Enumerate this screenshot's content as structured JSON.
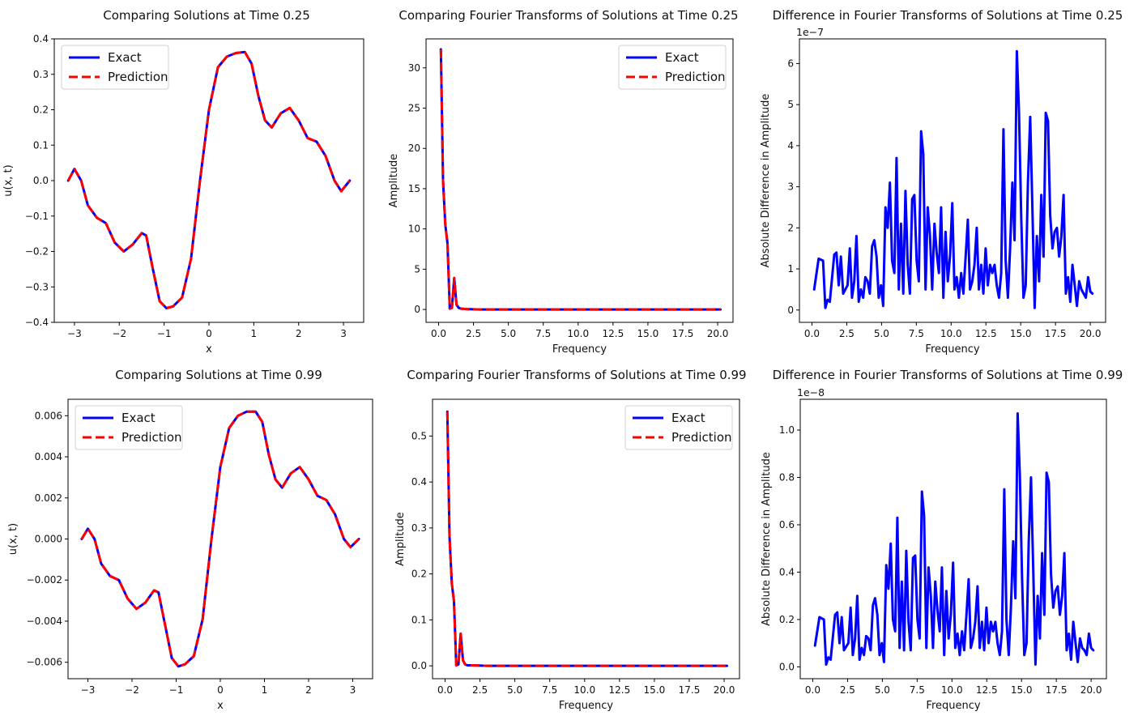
{
  "chart_data": [
    {
      "id": "p1",
      "type": "line",
      "title": "Comparing Solutions at Time 0.25",
      "xlabel": "x",
      "ylabel": "u(x, t)",
      "xlim": [
        -3.45,
        3.45
      ],
      "ylim": [
        -0.4,
        0.4
      ],
      "xticks": [
        -3,
        -2,
        -1,
        0,
        1,
        2,
        3
      ],
      "xtick_labels": [
        "−3",
        "−2",
        "−1",
        "0",
        "1",
        "2",
        "3"
      ],
      "yticks": [
        -0.4,
        -0.3,
        -0.2,
        -0.1,
        0.0,
        0.1,
        0.2,
        0.3,
        0.4
      ],
      "ytick_labels": [
        "−0.4",
        "−0.3",
        "−0.2",
        "−0.1",
        "0.0",
        "0.1",
        "0.2",
        "0.3",
        "0.4"
      ],
      "y_offset_label": "",
      "legend": "upper-left",
      "series": [
        {
          "name": "Exact",
          "color": "#0000ff",
          "style": "solid",
          "x": [
            -3.14,
            -3.0,
            -2.85,
            -2.7,
            -2.5,
            -2.3,
            -2.1,
            -1.9,
            -1.7,
            -1.5,
            -1.4,
            -1.25,
            -1.1,
            -0.95,
            -0.8,
            -0.6,
            -0.4,
            -0.2,
            0.0,
            0.2,
            0.4,
            0.6,
            0.8,
            0.95,
            1.1,
            1.25,
            1.4,
            1.6,
            1.8,
            2.0,
            2.2,
            2.4,
            2.6,
            2.8,
            2.95,
            3.14
          ],
          "y": [
            0.0,
            0.033,
            0.0,
            -0.07,
            -0.105,
            -0.12,
            -0.175,
            -0.2,
            -0.18,
            -0.148,
            -0.155,
            -0.25,
            -0.34,
            -0.36,
            -0.355,
            -0.33,
            -0.22,
            0.0,
            0.2,
            0.32,
            0.35,
            0.36,
            0.363,
            0.33,
            0.24,
            0.17,
            0.15,
            0.19,
            0.205,
            0.17,
            0.12,
            0.11,
            0.07,
            0.0,
            -0.03,
            0.0
          ]
        },
        {
          "name": "Prediction",
          "color": "#ff0000",
          "style": "dashed",
          "same_as": 0
        }
      ]
    },
    {
      "id": "p2",
      "type": "line",
      "title": "Comparing Fourier Transforms of Solutions at Time 0.25",
      "xlabel": "Frequency",
      "ylabel": "Amplitude",
      "xlim": [
        -0.9,
        21.1
      ],
      "ylim": [
        -1.6,
        33.6
      ],
      "xticks": [
        0,
        2.5,
        5,
        7.5,
        10,
        12.5,
        15,
        17.5,
        20
      ],
      "xtick_labels": [
        "0.0",
        "2.5",
        "5.0",
        "7.5",
        "10.0",
        "12.5",
        "15.0",
        "17.5",
        "20.0"
      ],
      "yticks": [
        0,
        5,
        10,
        15,
        20,
        25,
        30
      ],
      "ytick_labels": [
        "0",
        "5",
        "10",
        "15",
        "20",
        "25",
        "30"
      ],
      "y_offset_label": "",
      "legend": "upper-right",
      "series": [
        {
          "name": "Exact",
          "color": "#0000ff",
          "style": "solid",
          "x": [
            0.16,
            0.32,
            0.48,
            0.64,
            0.8,
            0.96,
            1.12,
            1.28,
            1.44,
            1.6,
            2.0,
            3.0,
            20.2
          ],
          "y": [
            32.3,
            16.0,
            10.5,
            8.2,
            0.1,
            0.2,
            3.9,
            0.6,
            0.2,
            0.1,
            0.05,
            0.0,
            0.0
          ]
        },
        {
          "name": "Prediction",
          "color": "#ff0000",
          "style": "dashed",
          "same_as": 0
        }
      ]
    },
    {
      "id": "p3",
      "type": "line",
      "title": "Difference in Fourier Transforms of Solutions at Time 0.25",
      "xlabel": "Frequency",
      "ylabel": "Absolute Difference in Amplitude",
      "xlim": [
        -0.9,
        21.1
      ],
      "ylim": [
        -0.3,
        6.6
      ],
      "xticks": [
        0,
        2.5,
        5,
        7.5,
        10,
        12.5,
        15,
        17.5,
        20
      ],
      "xtick_labels": [
        "0.0",
        "2.5",
        "5.0",
        "7.5",
        "10.0",
        "12.5",
        "15.0",
        "17.5",
        "20.0"
      ],
      "yticks": [
        0,
        1,
        2,
        3,
        4,
        5,
        6
      ],
      "ytick_labels": [
        "0",
        "1",
        "2",
        "3",
        "4",
        "5",
        "6"
      ],
      "y_offset_label": "1e−7",
      "legend": "",
      "series": [
        {
          "name": "",
          "color": "#0000ff",
          "style": "solid",
          "x": [
            0.16,
            0.48,
            0.8,
            0.96,
            1.12,
            1.28,
            1.6,
            1.76,
            1.92,
            2.08,
            2.24,
            2.56,
            2.72,
            2.88,
            3.04,
            3.2,
            3.36,
            3.52,
            3.68,
            3.84,
            4.0,
            4.16,
            4.32,
            4.48,
            4.64,
            4.8,
            4.96,
            5.12,
            5.28,
            5.44,
            5.6,
            5.76,
            5.92,
            6.08,
            6.24,
            6.4,
            6.56,
            6.72,
            6.88,
            7.04,
            7.2,
            7.36,
            7.52,
            7.68,
            7.84,
            8.0,
            8.16,
            8.32,
            8.48,
            8.64,
            8.8,
            8.96,
            9.12,
            9.28,
            9.44,
            9.6,
            9.76,
            9.92,
            10.08,
            10.24,
            10.4,
            10.56,
            10.72,
            10.88,
            11.04,
            11.2,
            11.36,
            11.52,
            11.68,
            11.84,
            12.0,
            12.16,
            12.32,
            12.48,
            12.64,
            12.8,
            12.96,
            13.12,
            13.28,
            13.44,
            13.6,
            13.76,
            13.92,
            14.08,
            14.24,
            14.4,
            14.56,
            14.72,
            14.88,
            15.04,
            15.2,
            15.36,
            15.52,
            15.68,
            15.84,
            16.0,
            16.16,
            16.32,
            16.48,
            16.64,
            16.8,
            16.96,
            17.12,
            17.28,
            17.44,
            17.6,
            17.76,
            17.92,
            18.08,
            18.24,
            18.4,
            18.56,
            18.72,
            18.88,
            19.04,
            19.2,
            19.36,
            19.52,
            19.68,
            19.84,
            20.0,
            20.16
          ],
          "y": [
            0.5,
            1.25,
            1.2,
            0.05,
            0.25,
            0.2,
            1.35,
            1.4,
            0.6,
            1.3,
            0.4,
            0.6,
            1.5,
            0.3,
            0.7,
            1.8,
            0.2,
            0.5,
            0.3,
            0.8,
            0.7,
            0.4,
            1.55,
            1.7,
            1.3,
            0.3,
            0.6,
            0.1,
            2.5,
            2.0,
            3.1,
            1.2,
            0.9,
            3.7,
            0.5,
            2.1,
            0.4,
            2.9,
            1.1,
            0.4,
            2.7,
            2.8,
            1.2,
            0.7,
            4.35,
            3.8,
            0.5,
            2.5,
            1.8,
            0.5,
            2.1,
            1.4,
            0.9,
            2.5,
            0.3,
            1.9,
            0.7,
            1.3,
            2.6,
            0.5,
            0.8,
            0.3,
            0.9,
            0.4,
            1.3,
            2.2,
            0.5,
            0.7,
            1.1,
            2.0,
            0.5,
            1.1,
            0.4,
            1.5,
            0.6,
            1.1,
            0.9,
            1.1,
            0.6,
            0.3,
            0.9,
            4.4,
            1.2,
            0.3,
            1.5,
            3.1,
            1.7,
            6.3,
            4.8,
            2.2,
            0.3,
            0.6,
            3.1,
            4.7,
            2.5,
            0.05,
            1.8,
            0.7,
            2.8,
            1.3,
            4.8,
            4.6,
            2.3,
            1.5,
            1.9,
            2.0,
            1.3,
            1.8,
            2.8,
            0.4,
            0.8,
            0.2,
            1.1,
            0.6,
            0.1,
            0.7,
            0.5,
            0.4,
            0.3,
            0.8,
            0.45,
            0.4
          ]
        }
      ]
    },
    {
      "id": "p4",
      "type": "line",
      "title": "Comparing Solutions at Time 0.99",
      "xlabel": "x",
      "ylabel": "u(x, t)",
      "xlim": [
        -3.45,
        3.45
      ],
      "ylim": [
        -0.0068,
        0.0068
      ],
      "xticks": [
        -3,
        -2,
        -1,
        0,
        1,
        2,
        3
      ],
      "xtick_labels": [
        "−3",
        "−2",
        "−1",
        "0",
        "1",
        "2",
        "3"
      ],
      "yticks": [
        -0.006,
        -0.004,
        -0.002,
        0.0,
        0.002,
        0.004,
        0.006
      ],
      "ytick_labels": [
        "−0.006",
        "−0.004",
        "−0.002",
        "0.000",
        "0.002",
        "0.004",
        "0.006"
      ],
      "y_offset_label": "",
      "legend": "upper-left",
      "series": [
        {
          "name": "Exact",
          "color": "#0000ff",
          "style": "solid",
          "x": [
            -3.14,
            -3.0,
            -2.85,
            -2.7,
            -2.5,
            -2.3,
            -2.1,
            -1.9,
            -1.7,
            -1.5,
            -1.4,
            -1.25,
            -1.1,
            -0.95,
            -0.8,
            -0.6,
            -0.4,
            -0.2,
            0.0,
            0.2,
            0.4,
            0.6,
            0.8,
            0.95,
            1.1,
            1.25,
            1.4,
            1.6,
            1.8,
            2.0,
            2.2,
            2.4,
            2.6,
            2.8,
            2.95,
            3.14
          ],
          "y": [
            0.0,
            0.0005,
            0.0,
            -0.0012,
            -0.0018,
            -0.002,
            -0.0029,
            -0.0034,
            -0.0031,
            -0.0025,
            -0.0026,
            -0.0042,
            -0.0058,
            -0.0062,
            -0.0061,
            -0.0057,
            -0.0039,
            0.0,
            0.0035,
            0.0054,
            0.006,
            0.0062,
            0.0062,
            0.0057,
            0.0041,
            0.0029,
            0.0025,
            0.0032,
            0.0035,
            0.0029,
            0.0021,
            0.0019,
            0.0012,
            0.0,
            -0.0004,
            0.0
          ]
        },
        {
          "name": "Prediction",
          "color": "#ff0000",
          "style": "dashed",
          "same_as": 0
        }
      ]
    },
    {
      "id": "p5",
      "type": "line",
      "title": "Comparing Fourier Transforms of Solutions at Time 0.99",
      "xlabel": "Frequency",
      "ylabel": "Amplitude",
      "xlim": [
        -0.9,
        21.1
      ],
      "ylim": [
        -0.028,
        0.58
      ],
      "xticks": [
        0,
        2.5,
        5,
        7.5,
        10,
        12.5,
        15,
        17.5,
        20
      ],
      "xtick_labels": [
        "0.0",
        "2.5",
        "5.0",
        "7.5",
        "10.0",
        "12.5",
        "15.0",
        "17.5",
        "20.0"
      ],
      "yticks": [
        0,
        0.1,
        0.2,
        0.3,
        0.4,
        0.5
      ],
      "ytick_labels": [
        "0.0",
        "0.1",
        "0.2",
        "0.3",
        "0.4",
        "0.5"
      ],
      "y_offset_label": "",
      "legend": "upper-right",
      "series": [
        {
          "name": "Exact",
          "color": "#0000ff",
          "style": "solid",
          "x": [
            0.16,
            0.32,
            0.48,
            0.64,
            0.8,
            0.96,
            1.12,
            1.28,
            1.44,
            1.6,
            2.0,
            3.0,
            20.2
          ],
          "y": [
            0.553,
            0.28,
            0.18,
            0.14,
            0.001,
            0.003,
            0.07,
            0.012,
            0.003,
            0.001,
            0.001,
            0.0,
            0.0
          ]
        },
        {
          "name": "Prediction",
          "color": "#ff0000",
          "style": "dashed",
          "same_as": 0
        }
      ]
    },
    {
      "id": "p6",
      "type": "line",
      "title": "Difference in Fourier Transforms of Solutions at Time 0.99",
      "xlabel": "Frequency",
      "ylabel": "Absolute Difference in Amplitude",
      "xlim": [
        -0.9,
        21.1
      ],
      "ylim": [
        -0.05,
        1.13
      ],
      "xticks": [
        0,
        2.5,
        5,
        7.5,
        10,
        12.5,
        15,
        17.5,
        20
      ],
      "xtick_labels": [
        "0.0",
        "2.5",
        "5.0",
        "7.5",
        "10.0",
        "12.5",
        "15.0",
        "17.5",
        "20.0"
      ],
      "yticks": [
        0,
        0.2,
        0.4,
        0.6,
        0.8,
        1.0
      ],
      "ytick_labels": [
        "0.0",
        "0.2",
        "0.4",
        "0.6",
        "0.8",
        "1.0"
      ],
      "y_offset_label": "1e−8",
      "legend": "",
      "series": [
        {
          "name": "",
          "color": "#0000ff",
          "style": "solid",
          "x": [
            0.16,
            0.48,
            0.8,
            0.96,
            1.12,
            1.28,
            1.6,
            1.76,
            1.92,
            2.08,
            2.24,
            2.56,
            2.72,
            2.88,
            3.04,
            3.2,
            3.36,
            3.52,
            3.68,
            3.84,
            4.0,
            4.16,
            4.32,
            4.48,
            4.64,
            4.8,
            4.96,
            5.12,
            5.28,
            5.44,
            5.6,
            5.76,
            5.92,
            6.08,
            6.24,
            6.4,
            6.56,
            6.72,
            6.88,
            7.04,
            7.2,
            7.36,
            7.52,
            7.68,
            7.84,
            8.0,
            8.16,
            8.32,
            8.48,
            8.64,
            8.8,
            8.96,
            9.12,
            9.28,
            9.44,
            9.6,
            9.76,
            9.92,
            10.08,
            10.24,
            10.4,
            10.56,
            10.72,
            10.88,
            11.04,
            11.2,
            11.36,
            11.52,
            11.68,
            11.84,
            12.0,
            12.16,
            12.32,
            12.48,
            12.64,
            12.8,
            12.96,
            13.12,
            13.28,
            13.44,
            13.6,
            13.76,
            13.92,
            14.08,
            14.24,
            14.4,
            14.56,
            14.72,
            14.88,
            15.04,
            15.2,
            15.36,
            15.52,
            15.68,
            15.84,
            16.0,
            16.16,
            16.32,
            16.48,
            16.64,
            16.8,
            16.96,
            17.12,
            17.28,
            17.44,
            17.6,
            17.76,
            17.92,
            18.08,
            18.24,
            18.4,
            18.56,
            18.72,
            18.88,
            19.04,
            19.2,
            19.36,
            19.52,
            19.68,
            19.84,
            20.0,
            20.16
          ],
          "y": [
            0.09,
            0.21,
            0.2,
            0.01,
            0.04,
            0.03,
            0.22,
            0.23,
            0.1,
            0.21,
            0.07,
            0.1,
            0.25,
            0.05,
            0.12,
            0.3,
            0.03,
            0.08,
            0.05,
            0.13,
            0.12,
            0.07,
            0.26,
            0.29,
            0.22,
            0.05,
            0.1,
            0.02,
            0.43,
            0.33,
            0.52,
            0.2,
            0.15,
            0.63,
            0.08,
            0.36,
            0.07,
            0.49,
            0.19,
            0.07,
            0.46,
            0.47,
            0.2,
            0.12,
            0.74,
            0.64,
            0.08,
            0.42,
            0.3,
            0.08,
            0.36,
            0.24,
            0.15,
            0.42,
            0.05,
            0.32,
            0.12,
            0.22,
            0.44,
            0.08,
            0.14,
            0.05,
            0.15,
            0.07,
            0.22,
            0.37,
            0.08,
            0.12,
            0.19,
            0.34,
            0.08,
            0.19,
            0.07,
            0.25,
            0.1,
            0.19,
            0.15,
            0.19,
            0.1,
            0.05,
            0.15,
            0.75,
            0.2,
            0.05,
            0.25,
            0.53,
            0.29,
            1.07,
            0.81,
            0.37,
            0.05,
            0.1,
            0.53,
            0.8,
            0.42,
            0.01,
            0.3,
            0.12,
            0.48,
            0.22,
            0.82,
            0.78,
            0.39,
            0.25,
            0.32,
            0.34,
            0.22,
            0.3,
            0.48,
            0.07,
            0.14,
            0.03,
            0.19,
            0.1,
            0.02,
            0.12,
            0.08,
            0.07,
            0.05,
            0.14,
            0.08,
            0.07
          ]
        }
      ]
    }
  ]
}
